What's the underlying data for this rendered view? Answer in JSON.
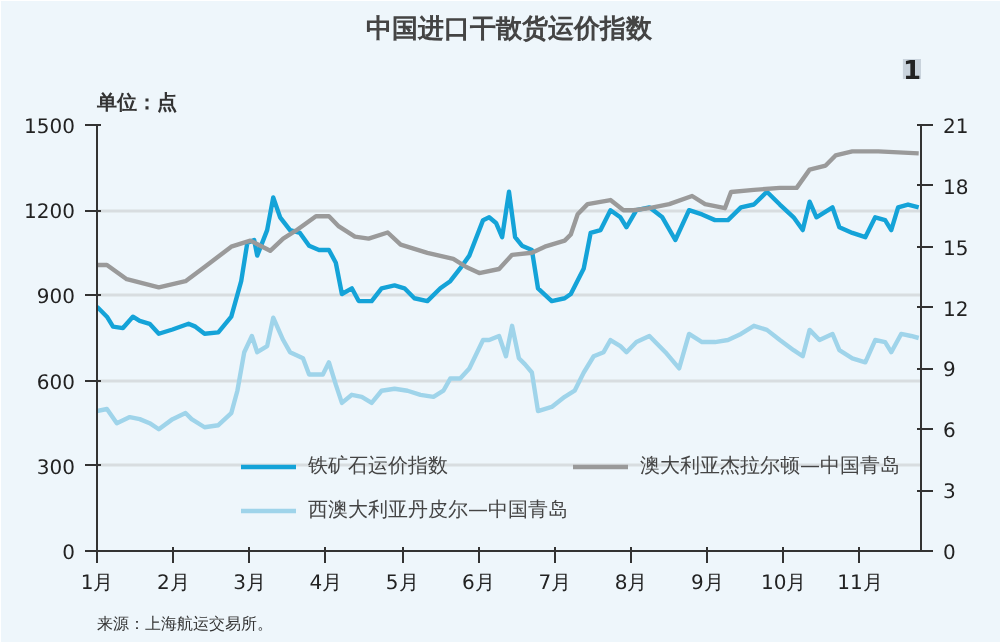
{
  "chart_data": {
    "type": "line",
    "title": "中国进口干散货运价指数",
    "ylabel": "单位：点",
    "annotations": [
      "1",
      "来源：上海航运交易所。"
    ],
    "xlim": [
      1,
      11.8
    ],
    "xticks": [
      {
        "value": 1,
        "label": "1月"
      },
      {
        "value": 2,
        "label": "2月"
      },
      {
        "value": 3,
        "label": "3月"
      },
      {
        "value": 4,
        "label": "4月"
      },
      {
        "value": 5,
        "label": "5月"
      },
      {
        "value": 6,
        "label": "6月"
      },
      {
        "value": 7,
        "label": "7月"
      },
      {
        "value": 8,
        "label": "8月"
      },
      {
        "value": 9,
        "label": "9月"
      },
      {
        "value": 10,
        "label": "10月"
      },
      {
        "value": 11,
        "label": "11月"
      }
    ],
    "ylim": [
      0,
      1500
    ],
    "yticks": [
      0,
      300,
      600,
      900,
      1200,
      1500
    ],
    "y2lim": [
      0,
      21
    ],
    "y2ticks": [
      0,
      3,
      6,
      9,
      12,
      15,
      18,
      21
    ],
    "grid": "y",
    "legend": "bottom right",
    "series": [
      {
        "name": "铁矿石运价指数",
        "color": "#14a3d8",
        "x": [
          1.0,
          1.13,
          1.21,
          1.34,
          1.47,
          1.56,
          1.69,
          1.81,
          1.99,
          2.2,
          2.29,
          2.41,
          2.59,
          2.76,
          2.89,
          2.97,
          3.06,
          3.1,
          3.23,
          3.31,
          3.4,
          3.53,
          3.66,
          3.78,
          3.91,
          4.04,
          4.13,
          4.21,
          4.34,
          4.43,
          4.6,
          4.73,
          4.9,
          5.03,
          5.16,
          5.33,
          5.5,
          5.63,
          5.76,
          5.88,
          6.06,
          6.14,
          6.23,
          6.31,
          6.4,
          6.48,
          6.57,
          6.7,
          6.78,
          6.96,
          7.13,
          7.21,
          7.38,
          7.47,
          7.6,
          7.73,
          7.86,
          7.94,
          8.07,
          8.24,
          8.41,
          8.58,
          8.76,
          8.93,
          9.1,
          9.27,
          9.44,
          9.61,
          9.78,
          9.95,
          10.13,
          10.25,
          10.34,
          10.43,
          10.64,
          10.73,
          10.9,
          11.07,
          11.2,
          11.33,
          11.41,
          11.5,
          11.63,
          11.77
        ],
        "values": [
          860,
          825,
          790,
          785,
          825,
          810,
          800,
          765,
          780,
          800,
          790,
          765,
          770,
          825,
          950,
          1085,
          1095,
          1040,
          1130,
          1245,
          1175,
          1130,
          1120,
          1075,
          1060,
          1060,
          1015,
          905,
          925,
          880,
          880,
          925,
          935,
          925,
          890,
          880,
          925,
          950,
          995,
          1040,
          1165,
          1175,
          1155,
          1105,
          1265,
          1105,
          1075,
          1060,
          925,
          880,
          890,
          905,
          995,
          1120,
          1130,
          1200,
          1175,
          1140,
          1200,
          1210,
          1175,
          1095,
          1200,
          1185,
          1165,
          1165,
          1210,
          1220,
          1265,
          1220,
          1175,
          1130,
          1230,
          1175,
          1210,
          1140,
          1120,
          1105,
          1175,
          1165,
          1130,
          1210,
          1220,
          1210
        ]
      },
      {
        "name": "西澳大利亚丹皮尔—中国青岛",
        "color": "#9fd4ea",
        "axis": "y2",
        "x": [
          1.0,
          1.13,
          1.26,
          1.43,
          1.56,
          1.69,
          1.81,
          1.99,
          2.16,
          2.24,
          2.41,
          2.59,
          2.76,
          2.84,
          2.93,
          3.03,
          3.1,
          3.23,
          3.31,
          3.44,
          3.53,
          3.7,
          3.78,
          3.96,
          4.04,
          4.13,
          4.21,
          4.34,
          4.47,
          4.6,
          4.73,
          4.9,
          5.07,
          5.24,
          5.41,
          5.54,
          5.63,
          5.76,
          5.88,
          6.06,
          6.14,
          6.27,
          6.36,
          6.44,
          6.53,
          6.61,
          6.7,
          6.78,
          6.96,
          7.13,
          7.26,
          7.38,
          7.51,
          7.64,
          7.73,
          7.86,
          7.94,
          8.07,
          8.24,
          8.45,
          8.63,
          8.76,
          8.93,
          9.1,
          9.27,
          9.44,
          9.61,
          9.78,
          9.95,
          10.13,
          10.25,
          10.34,
          10.47,
          10.64,
          10.73,
          10.9,
          11.07,
          11.2,
          11.33,
          11.41,
          11.54,
          11.67,
          11.77
        ],
        "values": [
          6.9,
          7.0,
          6.3,
          6.6,
          6.5,
          6.3,
          6.0,
          6.5,
          6.8,
          6.5,
          6.1,
          6.2,
          6.8,
          7.9,
          9.8,
          10.6,
          9.8,
          10.1,
          11.5,
          10.4,
          9.8,
          9.5,
          8.7,
          8.7,
          9.3,
          8.2,
          7.3,
          7.7,
          7.6,
          7.3,
          7.9,
          8.0,
          7.9,
          7.7,
          7.6,
          7.9,
          8.5,
          8.5,
          9.0,
          10.4,
          10.4,
          10.6,
          9.6,
          11.1,
          9.5,
          9.2,
          8.8,
          6.9,
          7.1,
          7.6,
          7.9,
          8.8,
          9.6,
          9.8,
          10.4,
          10.1,
          9.8,
          10.3,
          10.6,
          9.8,
          9.0,
          10.7,
          10.3,
          10.3,
          10.4,
          10.7,
          11.1,
          10.9,
          10.4,
          9.9,
          9.6,
          10.9,
          10.4,
          10.7,
          9.9,
          9.5,
          9.3,
          10.4,
          10.3,
          9.8,
          10.7,
          10.6,
          10.5
        ]
      },
      {
        "name": "澳大利亚杰拉尔顿—中国青岛",
        "color": "#9a9a9a",
        "axis": "y2",
        "x": [
          1.0,
          1.13,
          1.39,
          1.81,
          2.16,
          2.41,
          2.76,
          3.01,
          3.27,
          3.44,
          3.61,
          3.87,
          4.04,
          4.17,
          4.38,
          4.56,
          4.81,
          4.98,
          5.33,
          5.67,
          5.84,
          6.01,
          6.27,
          6.44,
          6.7,
          6.87,
          7.13,
          7.21,
          7.3,
          7.43,
          7.73,
          7.9,
          8.03,
          8.24,
          8.5,
          8.8,
          8.97,
          9.23,
          9.31,
          9.61,
          9.95,
          10.17,
          10.34,
          10.55,
          10.68,
          10.9,
          11.24,
          11.77
        ],
        "values": [
          14.1,
          14.1,
          13.4,
          13.0,
          13.3,
          14.0,
          15.0,
          15.3,
          14.8,
          15.4,
          15.8,
          16.5,
          16.5,
          16.0,
          15.5,
          15.4,
          15.7,
          15.1,
          14.7,
          14.4,
          14.0,
          13.7,
          13.9,
          14.6,
          14.7,
          15.0,
          15.3,
          15.6,
          16.6,
          17.1,
          17.3,
          16.8,
          16.8,
          16.9,
          17.1,
          17.5,
          17.1,
          16.9,
          17.7,
          17.8,
          17.9,
          17.9,
          18.8,
          19.0,
          19.5,
          19.7,
          19.7,
          19.6
        ]
      }
    ]
  }
}
